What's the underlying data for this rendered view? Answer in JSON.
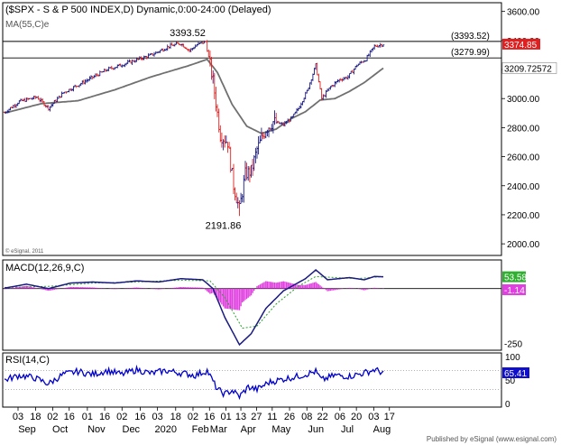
{
  "header": {
    "title": "($SPX - S & P 500 INDEX,D) Dynamic,0:00-24:00 (Delayed)",
    "ma_label": "MA(55,C)e",
    "watermark": "© eSignal, 2011",
    "footer": "Published by eSignal (www.esignal.com)"
  },
  "colors": {
    "up": "#1a1a80",
    "down": "#e02020",
    "ma": "#707070",
    "macd": "#1a1a80",
    "signal": "#2aa02a",
    "histogram": "#e040e0",
    "rsi": "#0000cc",
    "last_price_bg": "#e02020",
    "macd_badge": "#30b030",
    "rsi_badge": "#1010cc"
  },
  "price_labels": {
    "high": "3393.52",
    "low": "2191.86",
    "resistance": "(3393.52)",
    "support": "(3279.99)",
    "last": "3374.85",
    "ma_value": "3209.72572"
  },
  "macd_panel": {
    "label": "MACD(12,26,9,C)",
    "macd_value": "53.58",
    "hist_value": "-1.14",
    "axis_label": "-250"
  },
  "rsi_panel": {
    "label": "RSI(14,C)",
    "value": "65.41",
    "ticks": [
      "100",
      "50",
      "0"
    ]
  },
  "chart_data": [
    {
      "type": "candlestick",
      "y_ticks": [
        2000,
        2200,
        2400,
        2600,
        2800,
        3000,
        3200,
        3400,
        3600
      ],
      "y_tick_labels": [
        "2000.00",
        "2200.00",
        "2400.00",
        "2600.00",
        "2800.00",
        "3000.00",
        "3200.00",
        "3400.00",
        "3600.00"
      ],
      "ylim": [
        1920,
        3660
      ],
      "horizontal_lines": [
        3393.52,
        3279.99
      ],
      "close_anchors": [
        {
          "day": 0,
          "value": 2905
        },
        {
          "day": 10,
          "value": 2980
        },
        {
          "day": 22,
          "value": 3010
        },
        {
          "day": 30,
          "value": 2935
        },
        {
          "day": 40,
          "value": 3040
        },
        {
          "day": 55,
          "value": 3120
        },
        {
          "day": 70,
          "value": 3200
        },
        {
          "day": 85,
          "value": 3250
        },
        {
          "day": 100,
          "value": 3300
        },
        {
          "day": 112,
          "value": 3360
        },
        {
          "day": 120,
          "value": 3380
        },
        {
          "day": 126,
          "value": 3330
        },
        {
          "day": 131,
          "value": 3370
        },
        {
          "day": 137,
          "value": 3393
        },
        {
          "day": 142,
          "value": 3120
        },
        {
          "day": 147,
          "value": 2750
        },
        {
          "day": 152,
          "value": 2700
        },
        {
          "day": 156,
          "value": 2400
        },
        {
          "day": 160,
          "value": 2237
        },
        {
          "day": 164,
          "value": 2480
        },
        {
          "day": 168,
          "value": 2500
        },
        {
          "day": 172,
          "value": 2650
        },
        {
          "day": 178,
          "value": 2790
        },
        {
          "day": 183,
          "value": 2840
        },
        {
          "day": 190,
          "value": 2820
        },
        {
          "day": 196,
          "value": 2870
        },
        {
          "day": 200,
          "value": 2930
        },
        {
          "day": 206,
          "value": 3050
        },
        {
          "day": 212,
          "value": 3230
        },
        {
          "day": 216,
          "value": 3000
        },
        {
          "day": 222,
          "value": 3080
        },
        {
          "day": 228,
          "value": 3130
        },
        {
          "day": 234,
          "value": 3150
        },
        {
          "day": 240,
          "value": 3230
        },
        {
          "day": 246,
          "value": 3270
        },
        {
          "day": 252,
          "value": 3360
        },
        {
          "day": 258,
          "value": 3375
        }
      ],
      "ma55_anchors": [
        {
          "day": 0,
          "value": 2900
        },
        {
          "day": 25,
          "value": 2965
        },
        {
          "day": 50,
          "value": 2985
        },
        {
          "day": 75,
          "value": 3060
        },
        {
          "day": 100,
          "value": 3150
        },
        {
          "day": 125,
          "value": 3225
        },
        {
          "day": 138,
          "value": 3270
        },
        {
          "day": 145,
          "value": 3180
        },
        {
          "day": 155,
          "value": 2960
        },
        {
          "day": 165,
          "value": 2810
        },
        {
          "day": 175,
          "value": 2760
        },
        {
          "day": 185,
          "value": 2790
        },
        {
          "day": 195,
          "value": 2860
        },
        {
          "day": 205,
          "value": 2910
        },
        {
          "day": 215,
          "value": 2990
        },
        {
          "day": 225,
          "value": 3000
        },
        {
          "day": 235,
          "value": 3050
        },
        {
          "day": 245,
          "value": 3110
        },
        {
          "day": 258,
          "value": 3209.7
        }
      ],
      "annotations": [
        {
          "text": "3393.52",
          "day": 137,
          "value": 3393.52
        },
        {
          "text": "2191.86",
          "day": 160,
          "value": 2191.86
        }
      ]
    },
    {
      "type": "line",
      "title": "MACD(12,26,9,C)",
      "ylim": [
        -280,
        130
      ],
      "macd_anchors": [
        {
          "day": 0,
          "value": 2
        },
        {
          "day": 15,
          "value": 20
        },
        {
          "day": 30,
          "value": 0
        },
        {
          "day": 45,
          "value": 25
        },
        {
          "day": 60,
          "value": 30
        },
        {
          "day": 75,
          "value": 25
        },
        {
          "day": 90,
          "value": 35
        },
        {
          "day": 105,
          "value": 30
        },
        {
          "day": 120,
          "value": 45
        },
        {
          "day": 135,
          "value": 40
        },
        {
          "day": 142,
          "value": 0
        },
        {
          "day": 150,
          "value": -130
        },
        {
          "day": 160,
          "value": -255
        },
        {
          "day": 168,
          "value": -205
        },
        {
          "day": 178,
          "value": -90
        },
        {
          "day": 190,
          "value": -10
        },
        {
          "day": 205,
          "value": 45
        },
        {
          "day": 212,
          "value": 85
        },
        {
          "day": 220,
          "value": 40
        },
        {
          "day": 235,
          "value": 50
        },
        {
          "day": 245,
          "value": 40
        },
        {
          "day": 252,
          "value": 55
        },
        {
          "day": 258,
          "value": 53.58
        }
      ],
      "signal_anchors": [
        {
          "day": 0,
          "value": 5
        },
        {
          "day": 30,
          "value": 10
        },
        {
          "day": 60,
          "value": 25
        },
        {
          "day": 90,
          "value": 30
        },
        {
          "day": 120,
          "value": 38
        },
        {
          "day": 140,
          "value": 35
        },
        {
          "day": 150,
          "value": -40
        },
        {
          "day": 162,
          "value": -180
        },
        {
          "day": 172,
          "value": -170
        },
        {
          "day": 185,
          "value": -70
        },
        {
          "day": 200,
          "value": 10
        },
        {
          "day": 212,
          "value": 55
        },
        {
          "day": 225,
          "value": 50
        },
        {
          "day": 240,
          "value": 45
        },
        {
          "day": 258,
          "value": 54.7
        }
      ]
    },
    {
      "type": "line",
      "title": "RSI(14,C)",
      "ylim": [
        0,
        100
      ],
      "y_ticks": [
        100,
        50,
        0
      ],
      "rsi_anchors": [
        {
          "day": 0,
          "value": 50
        },
        {
          "day": 10,
          "value": 60
        },
        {
          "day": 20,
          "value": 55
        },
        {
          "day": 30,
          "value": 42
        },
        {
          "day": 40,
          "value": 62
        },
        {
          "day": 50,
          "value": 68
        },
        {
          "day": 60,
          "value": 62
        },
        {
          "day": 70,
          "value": 70
        },
        {
          "day": 80,
          "value": 62
        },
        {
          "day": 90,
          "value": 72
        },
        {
          "day": 100,
          "value": 64
        },
        {
          "day": 110,
          "value": 70
        },
        {
          "day": 120,
          "value": 65
        },
        {
          "day": 130,
          "value": 60
        },
        {
          "day": 138,
          "value": 70
        },
        {
          "day": 145,
          "value": 30
        },
        {
          "day": 150,
          "value": 20
        },
        {
          "day": 155,
          "value": 28
        },
        {
          "day": 160,
          "value": 15
        },
        {
          "day": 166,
          "value": 35
        },
        {
          "day": 172,
          "value": 30
        },
        {
          "day": 180,
          "value": 45
        },
        {
          "day": 190,
          "value": 52
        },
        {
          "day": 200,
          "value": 58
        },
        {
          "day": 212,
          "value": 68
        },
        {
          "day": 216,
          "value": 50
        },
        {
          "day": 225,
          "value": 60
        },
        {
          "day": 235,
          "value": 58
        },
        {
          "day": 245,
          "value": 65
        },
        {
          "day": 252,
          "value": 72
        },
        {
          "day": 258,
          "value": 65.41
        }
      ]
    }
  ],
  "x_axis": {
    "day_labels": [
      "03",
      "18",
      "02",
      "16",
      "01",
      "16",
      "02",
      "16",
      "03",
      "18",
      "02",
      "16",
      "01",
      "13",
      "27",
      "11",
      "26",
      "08",
      "22",
      "06",
      "20",
      "03",
      "17"
    ],
    "month_labels": [
      "Sep",
      "Oct",
      "Nov",
      "Dec",
      "2020",
      "Feb",
      "Mar",
      "Apr",
      "May",
      "Jun",
      "Jul",
      "Aug"
    ]
  }
}
